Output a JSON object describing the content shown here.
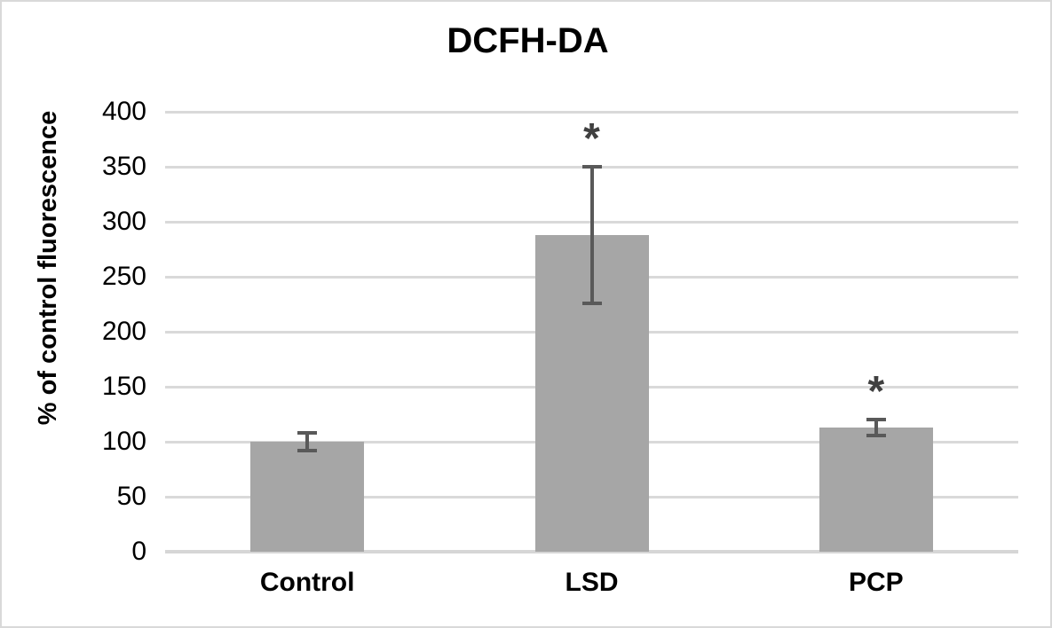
{
  "chart_data": {
    "type": "bar",
    "title": "DCFH-DA",
    "ylabel": "% of control fluorescence",
    "categories": [
      "Control",
      "LSD",
      "PCP"
    ],
    "values": [
      100,
      288,
      113
    ],
    "errors": [
      8,
      62,
      7
    ],
    "significance": [
      "",
      "*",
      "*"
    ],
    "ylim": [
      0,
      400
    ],
    "yticks": [
      0,
      50,
      100,
      150,
      200,
      250,
      300,
      350,
      400
    ],
    "grid": "horizontal",
    "legend": "none",
    "colors": {
      "bar_fill": "#a6a6a6",
      "error_bar": "#595959",
      "gridline": "#d9d9d9",
      "axis_line": "#d6d6d6",
      "text": "#000000",
      "significance": "#404040",
      "frame_border": "#d9d9d9",
      "background": "#ffffff"
    }
  }
}
